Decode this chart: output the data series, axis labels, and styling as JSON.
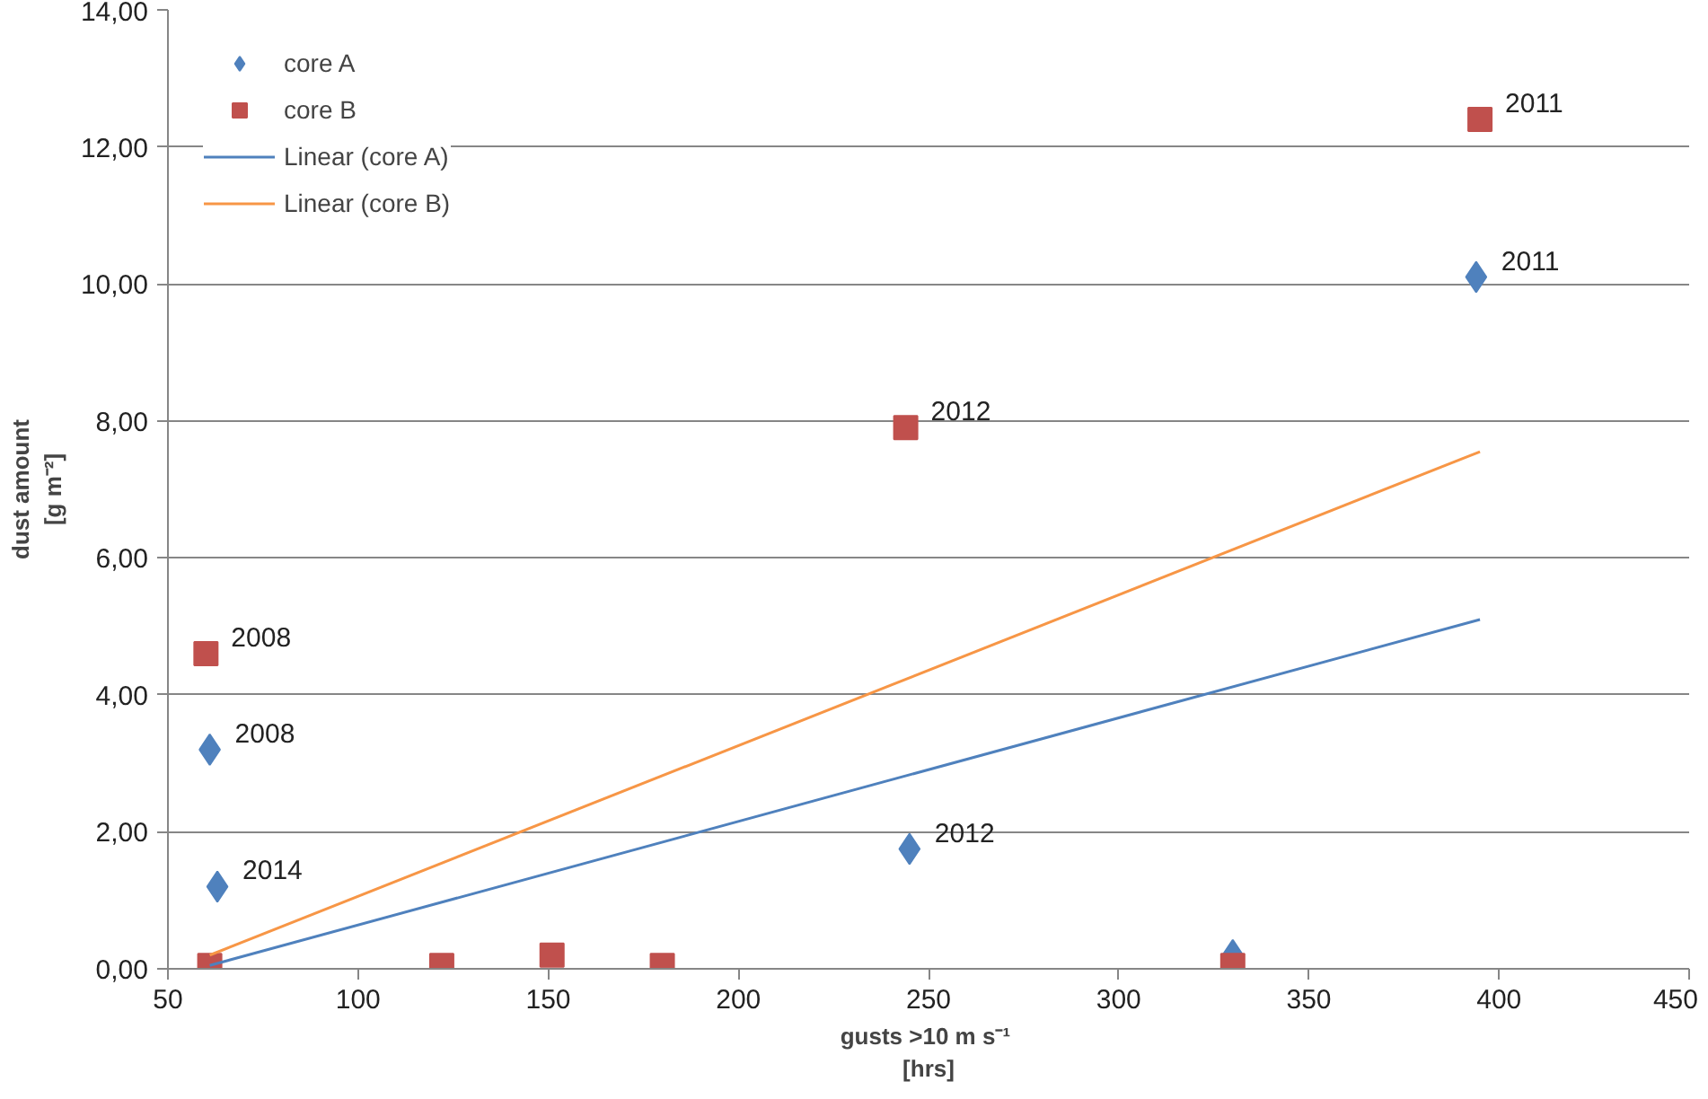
{
  "chart_data": {
    "type": "scatter",
    "xlabel": "gusts  >10 m s⁻¹\n[hrs]",
    "ylabel": "dust amount\n[g m⁻²]",
    "xlim": [
      50,
      450
    ],
    "ylim": [
      0,
      14
    ],
    "xticks": [
      50,
      100,
      150,
      200,
      250,
      300,
      350,
      400,
      450
    ],
    "yticks": [
      {
        "value": 0,
        "label": "0,00"
      },
      {
        "value": 2,
        "label": "2,00"
      },
      {
        "value": 4,
        "label": "4,00"
      },
      {
        "value": 6,
        "label": "6,00"
      },
      {
        "value": 8,
        "label": "8,00"
      },
      {
        "value": 10,
        "label": "10,00"
      },
      {
        "value": 12,
        "label": "12,00"
      },
      {
        "value": 14,
        "label": "14,00"
      }
    ],
    "grid": "y",
    "legend": "top left",
    "series": [
      {
        "name": "core A",
        "color": "#4f81bd",
        "marker": "diamond",
        "x": [
          61,
          63,
          245,
          330,
          394
        ],
        "values": [
          3.2,
          1.2,
          1.75,
          0.2,
          10.1
        ]
      },
      {
        "name": "core B",
        "color": "#c0504d",
        "marker": "square",
        "x": [
          60,
          61,
          122,
          151,
          180,
          244,
          330,
          395
        ],
        "values": [
          4.6,
          0.05,
          0.05,
          0.2,
          0.05,
          7.9,
          0.05,
          12.4
        ]
      },
      {
        "name": "Linear (core A)",
        "type": "line",
        "color": "#4f81bd",
        "x": [
          61,
          395
        ],
        "values": [
          0.05,
          5.1
        ]
      },
      {
        "name": "Linear (core B)",
        "type": "line",
        "color": "#f79646",
        "x": [
          61,
          395
        ],
        "values": [
          0.2,
          7.55
        ]
      }
    ],
    "annotations": [
      {
        "text": "2008",
        "x": 61,
        "y": 3.2
      },
      {
        "text": "2014",
        "x": 63,
        "y": 1.2
      },
      {
        "text": "2012",
        "x": 245,
        "y": 1.75
      },
      {
        "text": "2011",
        "x": 394,
        "y": 10.1
      },
      {
        "text": "2008",
        "x": 60,
        "y": 4.6
      },
      {
        "text": "2012",
        "x": 244,
        "y": 7.9
      },
      {
        "text": "2011",
        "x": 395,
        "y": 12.4
      }
    ]
  }
}
